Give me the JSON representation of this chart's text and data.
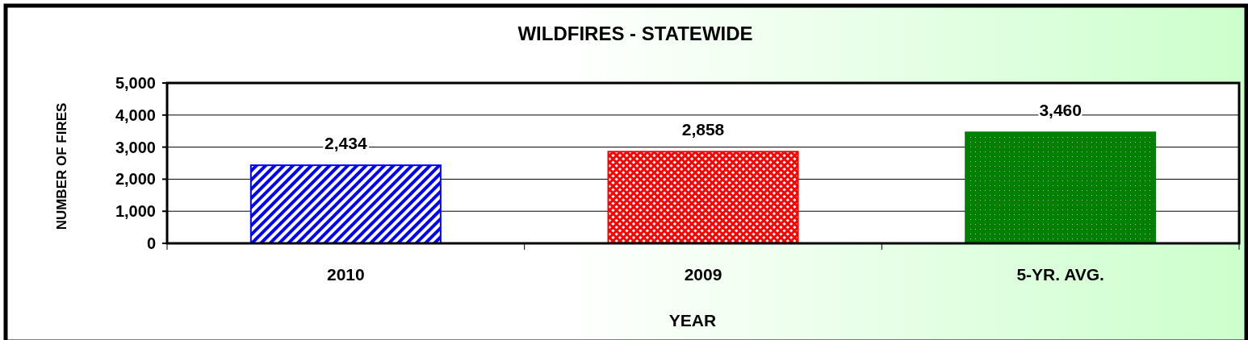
{
  "chart_data": {
    "type": "bar",
    "title": "WILDFIRES - STATEWIDE",
    "xlabel": "YEAR",
    "ylabel": "NUMBER OF FIRES",
    "categories": [
      "2010",
      "2009",
      "5-YR. AVG."
    ],
    "values": [
      2434,
      2858,
      3460
    ],
    "colors": [
      "#0000ff",
      "#ff0000",
      "#008000"
    ],
    "ylim": [
      0,
      5000
    ],
    "yticks": [
      {
        "value": 0,
        "label": "0"
      },
      {
        "value": 1000,
        "label": "1,000"
      },
      {
        "value": 2000,
        "label": "2,000"
      },
      {
        "value": 3000,
        "label": "3,000"
      },
      {
        "value": 4000,
        "label": "4,000"
      },
      {
        "value": 5000,
        "label": "5,000"
      }
    ],
    "value_labels": [
      "2,434",
      "2,858",
      "3,460"
    ],
    "grid": "y"
  }
}
